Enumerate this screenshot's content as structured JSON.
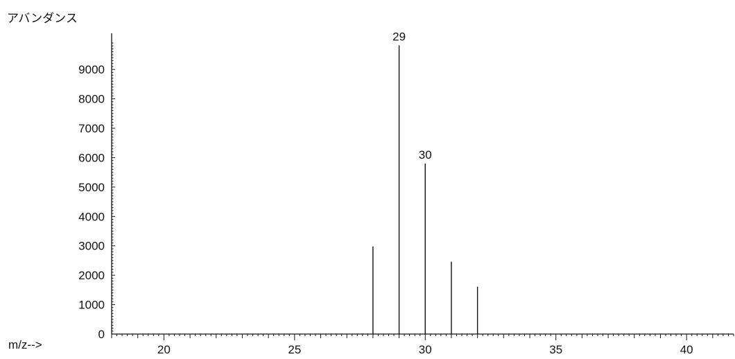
{
  "chart_data": {
    "type": "bar",
    "ylabel": "アバンダンス",
    "xlabel": "m/z-->",
    "x_ticks": [
      "20",
      "25",
      "30",
      "35",
      "40"
    ],
    "y_ticks": [
      "0",
      "1000",
      "2000",
      "3000",
      "4000",
      "5000",
      "6000",
      "7000",
      "8000",
      "9000"
    ],
    "xlim": [
      18,
      41.8
    ],
    "ylim": [
      0,
      10000
    ],
    "peaks": [
      {
        "mz": 28,
        "abundance": 2980
      },
      {
        "mz": 29,
        "abundance": 9820,
        "label": "29"
      },
      {
        "mz": 30,
        "abundance": 5800,
        "label": "30"
      },
      {
        "mz": 31,
        "abundance": 2460
      },
      {
        "mz": 32,
        "abundance": 1610
      }
    ],
    "grid": false,
    "legend": "none"
  }
}
